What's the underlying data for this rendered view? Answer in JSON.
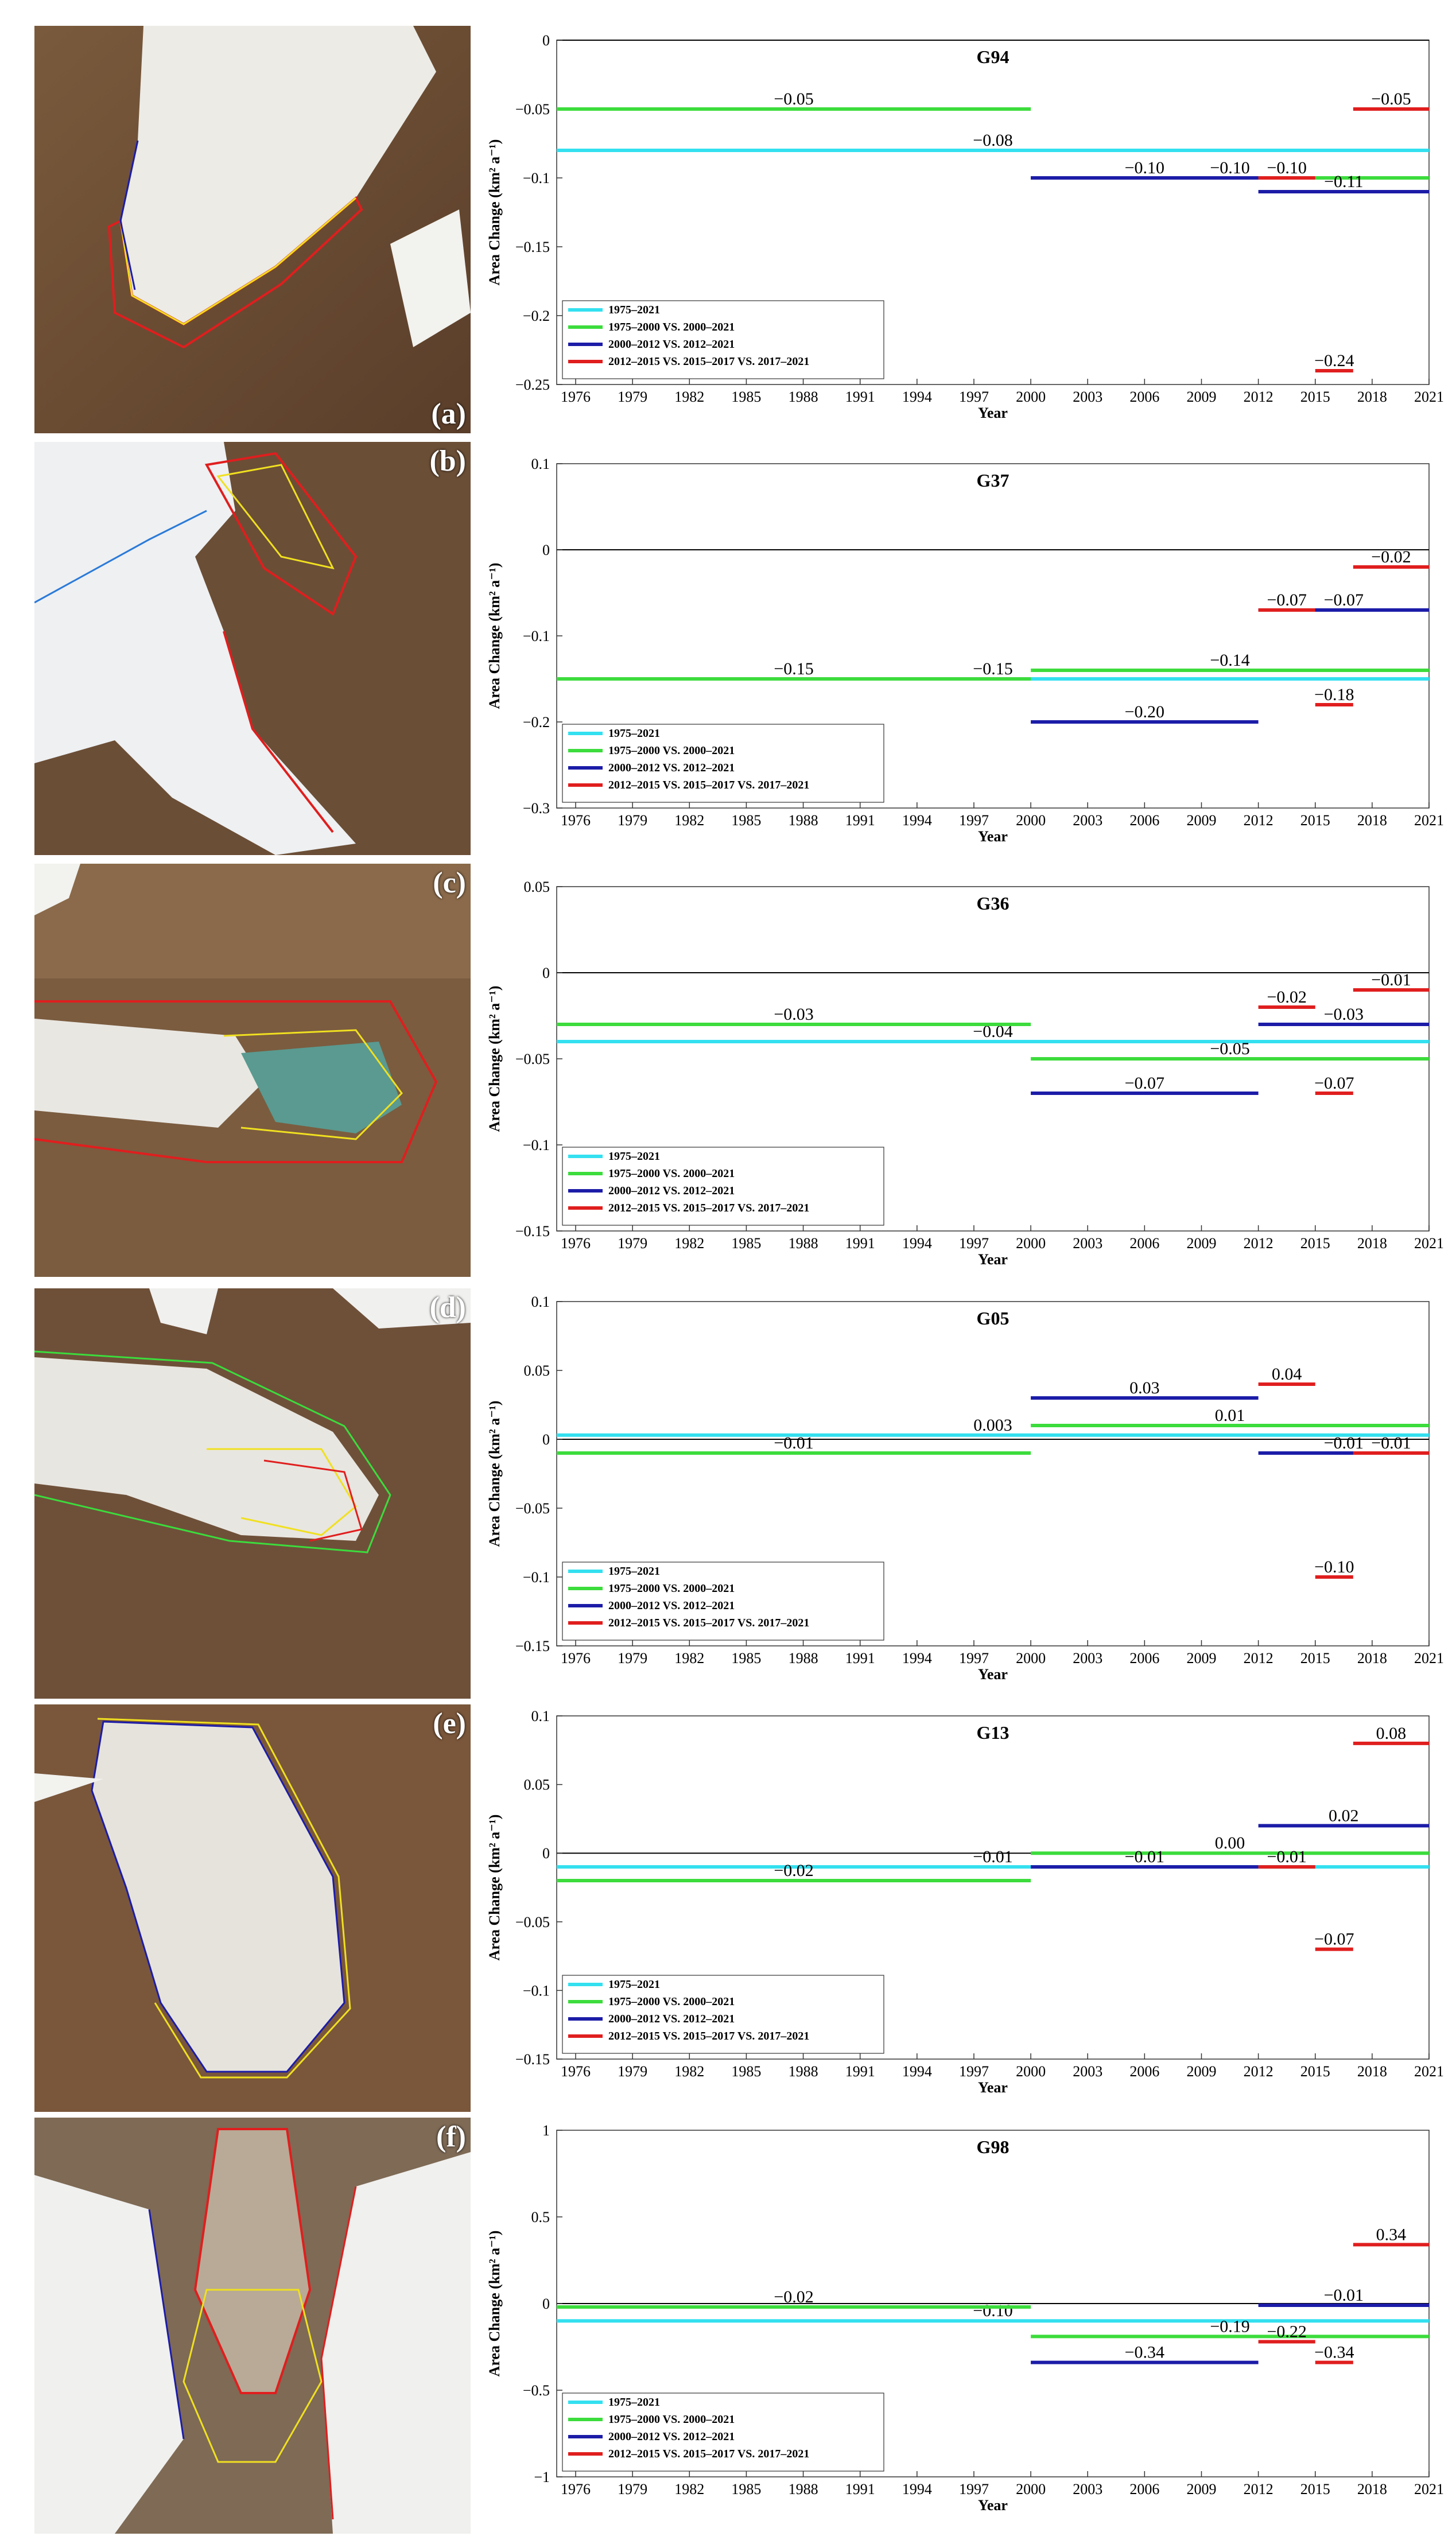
{
  "colors": {
    "cyan": "#33e0f0",
    "green": "#3cdc3c",
    "blue": "#1c1ca8",
    "red": "#e01e1e"
  },
  "legend": [
    {
      "label": "1975–2021",
      "color": "#33e0f0"
    },
    {
      "label": "1975–2000 VS. 2000–2021",
      "color": "#3cdc3c"
    },
    {
      "label": "2000–2012 VS. 2012–2021",
      "color": "#1c1ca8"
    },
    {
      "label": "2012–2015 VS. 2015–2017 VS. 2017–2021",
      "color": "#e01e1e"
    }
  ],
  "x_ticks": [
    1976,
    1979,
    1982,
    1985,
    1988,
    1991,
    1994,
    1997,
    2000,
    2003,
    2006,
    2009,
    2012,
    2015,
    2018,
    2021
  ],
  "panels": [
    {
      "letter": "(a)"
    },
    {
      "letter": "(b)"
    },
    {
      "letter": "(c)"
    },
    {
      "letter": "(d)"
    },
    {
      "letter": "(e)"
    },
    {
      "letter": "(f)"
    }
  ],
  "chart_data": [
    {
      "type": "line",
      "title": "G94",
      "xlabel": "Year",
      "ylabel": "Area Change (km² a⁻¹)",
      "xlim": [
        1975,
        2021
      ],
      "ylim": [
        -0.25,
        0
      ],
      "y_ticks": [
        0,
        -0.05,
        -0.1,
        -0.15,
        -0.2,
        -0.25
      ],
      "y_tick_labels": [
        "0",
        "−0.05",
        "−0.1",
        "−0.15",
        "−0.2",
        "−0.25"
      ],
      "legend_position": "bottom-left",
      "segments": [
        {
          "series": "cyan",
          "x0": 1975,
          "x1": 2021,
          "value": -0.08,
          "label": "−0.08"
        },
        {
          "series": "green",
          "x0": 1975,
          "x1": 2000,
          "value": -0.05,
          "label": "−0.05"
        },
        {
          "series": "green",
          "x0": 2000,
          "x1": 2021,
          "value": -0.1,
          "label": "−0.10"
        },
        {
          "series": "blue",
          "x0": 2000,
          "x1": 2012,
          "value": -0.1,
          "label": "−0.10"
        },
        {
          "series": "blue",
          "x0": 2012,
          "x1": 2021,
          "value": -0.11,
          "label": "−0.11"
        },
        {
          "series": "red",
          "x0": 2012,
          "x1": 2015,
          "value": -0.1,
          "label": "−0.10"
        },
        {
          "series": "red",
          "x0": 2015,
          "x1": 2017,
          "value": -0.24,
          "label": "−0.24"
        },
        {
          "series": "red",
          "x0": 2017,
          "x1": 2021,
          "value": -0.05,
          "label": "−0.05"
        }
      ]
    },
    {
      "type": "line",
      "title": "G37",
      "xlabel": "Year",
      "ylabel": "Area Change (km² a⁻¹)",
      "xlim": [
        1975,
        2021
      ],
      "ylim": [
        -0.3,
        0.1
      ],
      "y_ticks": [
        0.1,
        0,
        -0.1,
        -0.2,
        -0.3
      ],
      "y_tick_labels": [
        "0.1",
        "0",
        "−0.1",
        "−0.2",
        "−0.3"
      ],
      "legend_position": "bottom-left",
      "segments": [
        {
          "series": "cyan",
          "x0": 1975,
          "x1": 2021,
          "value": -0.15,
          "label": "−0.15"
        },
        {
          "series": "green",
          "x0": 1975,
          "x1": 2000,
          "value": -0.15,
          "label": "−0.15"
        },
        {
          "series": "green",
          "x0": 2000,
          "x1": 2021,
          "value": -0.14,
          "label": "−0.14"
        },
        {
          "series": "blue",
          "x0": 2000,
          "x1": 2012,
          "value": -0.2,
          "label": "−0.20"
        },
        {
          "series": "blue",
          "x0": 2012,
          "x1": 2021,
          "value": -0.07,
          "label": "−0.07"
        },
        {
          "series": "red",
          "x0": 2012,
          "x1": 2015,
          "value": -0.07,
          "label": "−0.07"
        },
        {
          "series": "red",
          "x0": 2015,
          "x1": 2017,
          "value": -0.18,
          "label": "−0.18"
        },
        {
          "series": "red",
          "x0": 2017,
          "x1": 2021,
          "value": -0.02,
          "label": "−0.02"
        }
      ]
    },
    {
      "type": "line",
      "title": "G36",
      "xlabel": "Year",
      "ylabel": "Area Change (km² a⁻¹)",
      "xlim": [
        1975,
        2021
      ],
      "ylim": [
        -0.15,
        0.05
      ],
      "y_ticks": [
        0.05,
        0,
        -0.05,
        -0.1,
        -0.15
      ],
      "y_tick_labels": [
        "0.05",
        "0",
        "−0.05",
        "−0.1",
        "−0.15"
      ],
      "legend_position": "bottom-left",
      "segments": [
        {
          "series": "cyan",
          "x0": 1975,
          "x1": 2021,
          "value": -0.04,
          "label": "−0.04"
        },
        {
          "series": "green",
          "x0": 1975,
          "x1": 2000,
          "value": -0.03,
          "label": "−0.03"
        },
        {
          "series": "green",
          "x0": 2000,
          "x1": 2021,
          "value": -0.05,
          "label": "−0.05"
        },
        {
          "series": "blue",
          "x0": 2000,
          "x1": 2012,
          "value": -0.07,
          "label": "−0.07"
        },
        {
          "series": "blue",
          "x0": 2012,
          "x1": 2021,
          "value": -0.03,
          "label": "−0.03"
        },
        {
          "series": "red",
          "x0": 2012,
          "x1": 2015,
          "value": -0.02,
          "label": "−0.02"
        },
        {
          "series": "red",
          "x0": 2015,
          "x1": 2017,
          "value": -0.07,
          "label": "−0.07"
        },
        {
          "series": "red",
          "x0": 2017,
          "x1": 2021,
          "value": -0.01,
          "label": "−0.01"
        }
      ]
    },
    {
      "type": "line",
      "title": "G05",
      "xlabel": "Year",
      "ylabel": "Area Change (km² a⁻¹)",
      "xlim": [
        1975,
        2021
      ],
      "ylim": [
        -0.15,
        0.1
      ],
      "y_ticks": [
        0.1,
        0.05,
        0,
        -0.05,
        -0.1,
        -0.15
      ],
      "y_tick_labels": [
        "0.1",
        "0.05",
        "0",
        "−0.05",
        "−0.1",
        "−0.15"
      ],
      "legend_position": "bottom-left",
      "segments": [
        {
          "series": "cyan",
          "x0": 1975,
          "x1": 2021,
          "value": 0.003,
          "label": "0.003"
        },
        {
          "series": "green",
          "x0": 1975,
          "x1": 2000,
          "value": -0.01,
          "label": "−0.01"
        },
        {
          "series": "green",
          "x0": 2000,
          "x1": 2021,
          "value": 0.01,
          "label": "0.01"
        },
        {
          "series": "blue",
          "x0": 2000,
          "x1": 2012,
          "value": 0.03,
          "label": "0.03"
        },
        {
          "series": "blue",
          "x0": 2012,
          "x1": 2021,
          "value": -0.01,
          "label": "−0.01"
        },
        {
          "series": "red",
          "x0": 2012,
          "x1": 2015,
          "value": 0.04,
          "label": "0.04"
        },
        {
          "series": "red",
          "x0": 2015,
          "x1": 2017,
          "value": -0.1,
          "label": "−0.10"
        },
        {
          "series": "red",
          "x0": 2017,
          "x1": 2021,
          "value": -0.01,
          "label": "−0.01"
        }
      ]
    },
    {
      "type": "line",
      "title": "G13",
      "xlabel": "Year",
      "ylabel": "Area Change (km² a⁻¹)",
      "xlim": [
        1975,
        2021
      ],
      "ylim": [
        -0.15,
        0.1
      ],
      "y_ticks": [
        0.1,
        0.05,
        0,
        -0.05,
        -0.1,
        -0.15
      ],
      "y_tick_labels": [
        "0.1",
        "0.05",
        "0",
        "−0.05",
        "−0.1",
        "−0.15"
      ],
      "legend_position": "bottom-left",
      "segments": [
        {
          "series": "cyan",
          "x0": 1975,
          "x1": 2021,
          "value": -0.01,
          "label": "−0.01"
        },
        {
          "series": "green",
          "x0": 1975,
          "x1": 2000,
          "value": -0.02,
          "label": "−0.02"
        },
        {
          "series": "green",
          "x0": 2000,
          "x1": 2021,
          "value": 0.0,
          "label": "0.00"
        },
        {
          "series": "blue",
          "x0": 2000,
          "x1": 2012,
          "value": -0.01,
          "label": "−0.01"
        },
        {
          "series": "blue",
          "x0": 2012,
          "x1": 2021,
          "value": 0.02,
          "label": "0.02"
        },
        {
          "series": "red",
          "x0": 2012,
          "x1": 2015,
          "value": -0.01,
          "label": "−0.01"
        },
        {
          "series": "red",
          "x0": 2015,
          "x1": 2017,
          "value": -0.07,
          "label": "−0.07"
        },
        {
          "series": "red",
          "x0": 2017,
          "x1": 2021,
          "value": 0.08,
          "label": "0.08"
        }
      ]
    },
    {
      "type": "line",
      "title": "G98",
      "xlabel": "Year",
      "ylabel": "Area Change (km² a⁻¹)",
      "xlim": [
        1975,
        2021
      ],
      "ylim": [
        -1,
        1
      ],
      "y_ticks": [
        1,
        0.5,
        0,
        -0.5,
        -1
      ],
      "y_tick_labels": [
        "1",
        "0.5",
        "0",
        "−0.5",
        "−1"
      ],
      "legend_position": "bottom-left",
      "segments": [
        {
          "series": "cyan",
          "x0": 1975,
          "x1": 2021,
          "value": -0.1,
          "label": "−0.10"
        },
        {
          "series": "green",
          "x0": 1975,
          "x1": 2000,
          "value": -0.02,
          "label": "−0.02"
        },
        {
          "series": "green",
          "x0": 2000,
          "x1": 2021,
          "value": -0.19,
          "label": "−0.19"
        },
        {
          "series": "blue",
          "x0": 2000,
          "x1": 2012,
          "value": -0.34,
          "label": "−0.34"
        },
        {
          "series": "blue",
          "x0": 2012,
          "x1": 2021,
          "value": -0.01,
          "label": "−0.01"
        },
        {
          "series": "red",
          "x0": 2012,
          "x1": 2015,
          "value": -0.22,
          "label": "−0.22"
        },
        {
          "series": "red",
          "x0": 2015,
          "x1": 2017,
          "value": -0.34,
          "label": "−0.34"
        },
        {
          "series": "red",
          "x0": 2017,
          "x1": 2021,
          "value": 0.34,
          "label": "0.34"
        }
      ]
    }
  ]
}
